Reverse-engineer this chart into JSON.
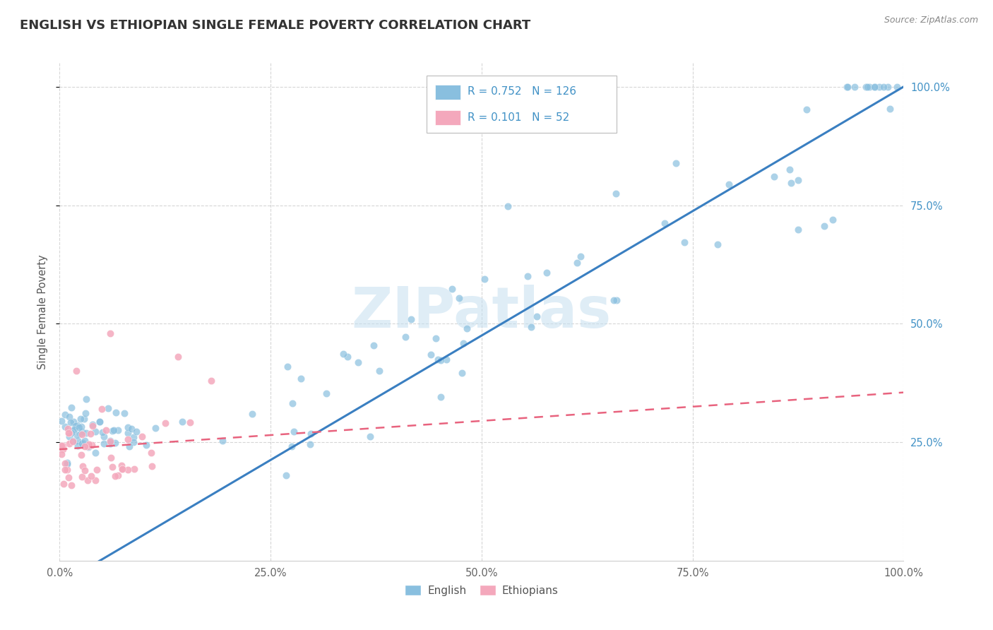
{
  "title": "ENGLISH VS ETHIOPIAN SINGLE FEMALE POVERTY CORRELATION CHART",
  "source": "Source: ZipAtlas.com",
  "ylabel": "Single Female Poverty",
  "english_R": 0.752,
  "english_N": 126,
  "ethiopian_R": 0.101,
  "ethiopian_N": 52,
  "english_color": "#89bfdf",
  "ethiopian_color": "#f4a8bc",
  "english_line_color": "#3a7fc1",
  "ethiopian_line_color": "#e8637e",
  "english_line_solid": true,
  "ethiopian_line_dashed": true,
  "watermark_text": "ZIPatlas",
  "watermark_color": "#c5dff0",
  "title_fontsize": 13,
  "axis_label_color": "#555555",
  "right_tick_color": "#4292c6",
  "legend_box_color": "#aaaaaa",
  "x_min": 0.0,
  "x_max": 1.0,
  "y_min": 0.0,
  "y_max": 1.05,
  "grid_color": "#cccccc",
  "grid_style": "--",
  "scatter_size": 55,
  "scatter_alpha": 0.7
}
